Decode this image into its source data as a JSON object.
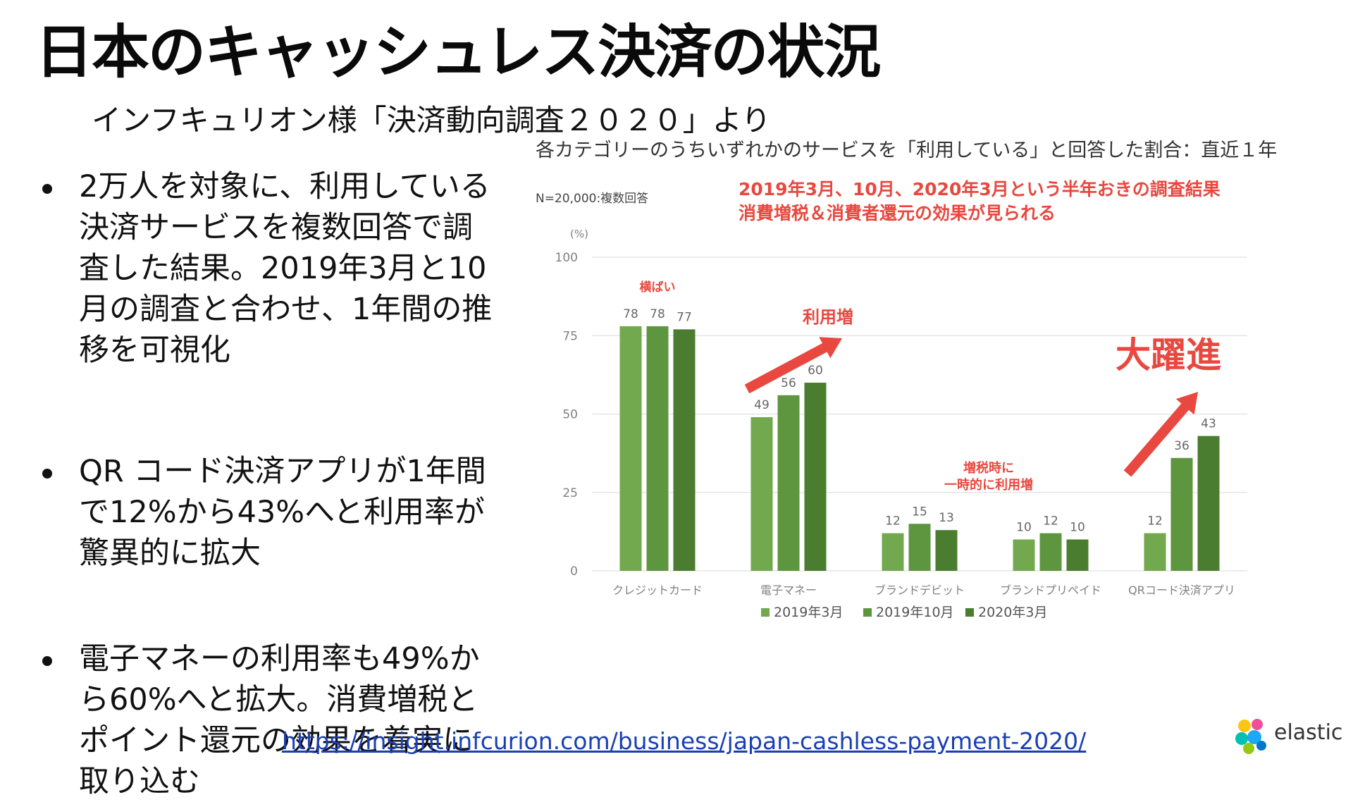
{
  "slide": {
    "title": "日本のキャッシュレス決済の状況",
    "subtitle": "インフキュリオン様「決済動向調査２０２０」より",
    "bullets": [
      "2万人を対象に、利用している決済サービスを複数回答で調査した結果。2019年3月と10月の調査と合わせ、1年間の推移を可視化",
      "QR コード決済アプリが1年間で12%から43%へと利用率が驚異的に拡大",
      "電子マネーの利用率も49%から60%へと拡大。消費増税とポイント還元の効果を着実に取り込む"
    ],
    "source_url": "https://insight.infcurion.com/business/japan-cashless-payment-2020/",
    "logo_text": "elastic"
  },
  "colors": {
    "series": [
      "#72A84E",
      "#5E9640",
      "#4A7D2F"
    ],
    "annotation_red": "#E8483F",
    "axis_text": "#808080",
    "gridline": "#D9D9D9",
    "link": "#1a3fb5"
  },
  "chart_data": {
    "type": "bar",
    "title": "各カテゴリーのうちいずれかのサービスを「利用している」と回答した割合：直近１年",
    "note": "N=20,000:複数回答",
    "ylabel": "(%)",
    "ylim": [
      0,
      100
    ],
    "yticks": [
      0,
      25,
      50,
      75,
      100
    ],
    "grid": true,
    "legend_position": "bottom",
    "categories": [
      "クレジットカード",
      "電子マネー",
      "ブランドデビット",
      "ブランドプリペイド",
      "QRコード決済アプリ"
    ],
    "series": [
      {
        "name": "2019年3月",
        "values": [
          78,
          49,
          12,
          10,
          12
        ]
      },
      {
        "name": "2019年10月",
        "values": [
          78,
          56,
          15,
          12,
          36
        ]
      },
      {
        "name": "2020年3月",
        "values": [
          77,
          60,
          13,
          10,
          43
        ]
      }
    ],
    "annotations": {
      "headline": [
        "2019年3月、10月、2020年3月という半年おきの調査結果",
        "消費増税＆消費者還元の効果が見られる"
      ],
      "credit": "横ばい",
      "emoney": "利用増",
      "prepaid": [
        "増税時に",
        "一時的に利用増"
      ],
      "qr": "大躍進"
    }
  }
}
